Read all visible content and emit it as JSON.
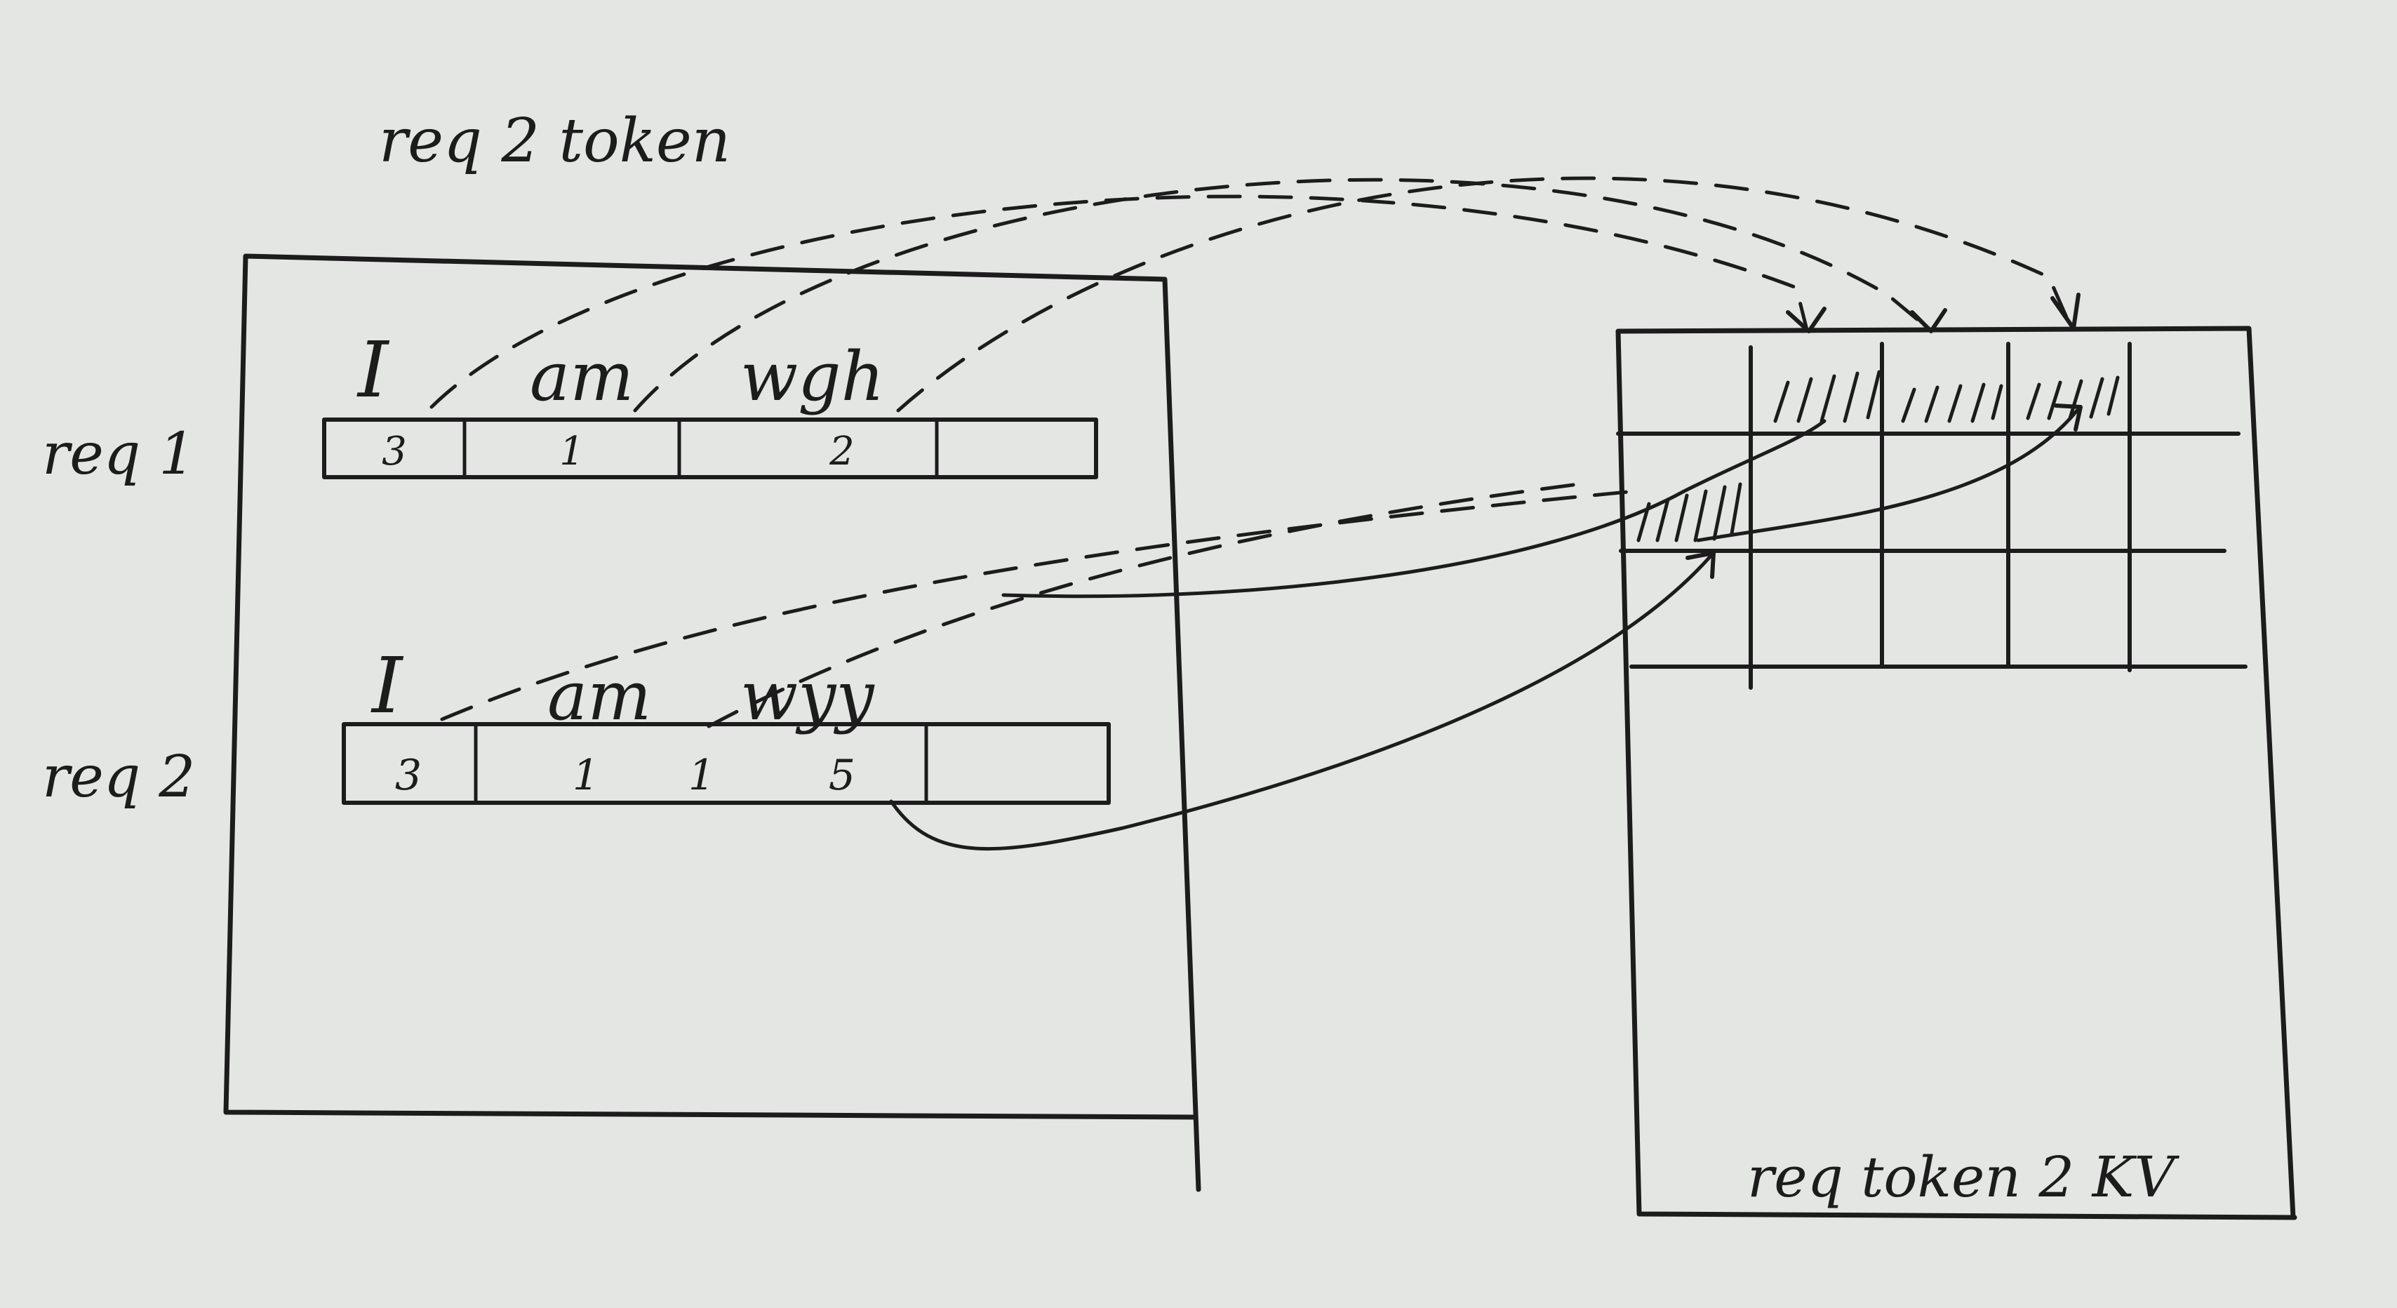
{
  "title": "req 2 token",
  "left_panel": {
    "requests": [
      {
        "label": "req 1",
        "tokens": [
          "I",
          "am",
          "wgh"
        ],
        "cells": [
          "3",
          "1",
          "2",
          ""
        ]
      },
      {
        "label": "req 2",
        "tokens": [
          "I",
          "am",
          "wyy"
        ],
        "cells": [
          "3",
          "1",
          "1",
          "5",
          ""
        ]
      }
    ]
  },
  "right_panel": {
    "label": "req token 2 KV",
    "grid": {
      "rows": 3,
      "cols": 5,
      "hatched": [
        [
          0,
          1
        ],
        [
          0,
          2
        ],
        [
          0,
          3
        ],
        [
          1,
          0
        ]
      ]
    }
  },
  "colors": {
    "ink": "#1c1c1c",
    "paper": "#e4e6e4"
  }
}
